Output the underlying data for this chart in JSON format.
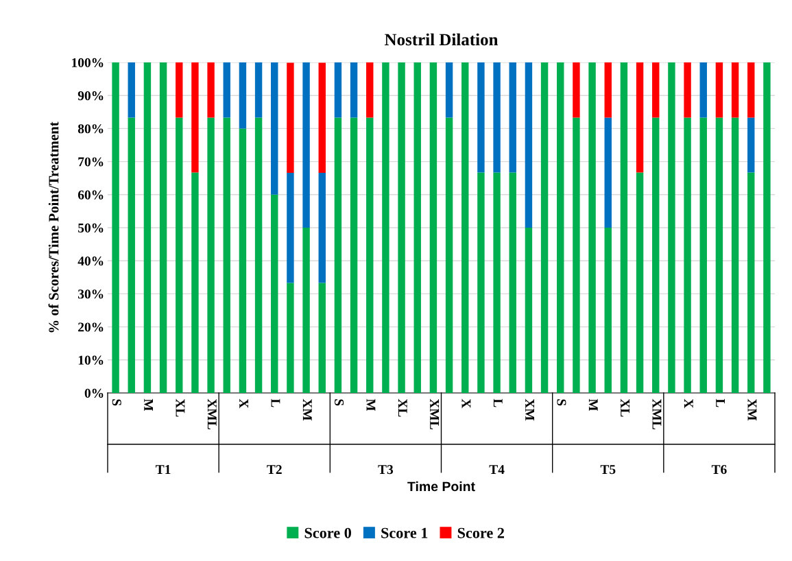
{
  "chart_data": {
    "type": "bar",
    "stacked": true,
    "title": "Nostril Dilation",
    "ylabel": "% of Scores/Time Point/Treatment",
    "xlabel": "Time Point",
    "categories": [
      "S",
      null,
      "M",
      null,
      "XL",
      null,
      "XML",
      null,
      "X",
      null,
      "L",
      null,
      "XM",
      null,
      "S",
      null,
      "M",
      null,
      "XL",
      null,
      "XML",
      null,
      "X",
      null,
      "L",
      null,
      "XM",
      null,
      "S",
      null,
      "M",
      null,
      "XL",
      null,
      "XML",
      null,
      "X",
      null,
      "L",
      null,
      "XM",
      null
    ],
    "annotations": [
      "T1",
      "T2",
      "T3",
      "T4",
      "T5",
      "T6"
    ],
    "series": [
      {
        "name": "Score 0",
        "color": "#00b050",
        "values": [
          100,
          83.3,
          100,
          100,
          83.3,
          66.7,
          83.3,
          83.3,
          80,
          83.3,
          60,
          33.3,
          50,
          33.3,
          83.3,
          83.3,
          83.3,
          100,
          100,
          100,
          100,
          83.3,
          100,
          66.7,
          66.7,
          66.7,
          50,
          100,
          100,
          83.3,
          100,
          50,
          100,
          66.7,
          83.3,
          100,
          83.3,
          83.3,
          83.3,
          83.3,
          66.7,
          100
        ]
      },
      {
        "name": "Score 1",
        "color": "#0070c0",
        "values": [
          0,
          16.7,
          0,
          0,
          0,
          0,
          0,
          16.7,
          20,
          16.7,
          40,
          33.3,
          50,
          33.3,
          16.7,
          16.7,
          0,
          0,
          0,
          0,
          0,
          16.7,
          0,
          33.3,
          33.3,
          33.3,
          50,
          0,
          0,
          0,
          0,
          33.3,
          0,
          0,
          0,
          0,
          0,
          16.7,
          0,
          0,
          16.6,
          0
        ]
      },
      {
        "name": "Score 2",
        "color": "#ff0000",
        "values": [
          0,
          0,
          0,
          0,
          16.7,
          33.3,
          16.7,
          0,
          0,
          0,
          0,
          33.3,
          0,
          33.3,
          0,
          0,
          16.7,
          0,
          0,
          0,
          0,
          0,
          0,
          0,
          0,
          0,
          0,
          0,
          0,
          16.7,
          0,
          16.7,
          0,
          33.3,
          16.7,
          0,
          16.7,
          0,
          16.7,
          16.7,
          16.7,
          0
        ]
      }
    ],
    "ylim": [
      0,
      100
    ],
    "yticks": [
      {
        "value": 0,
        "label": "0%"
      },
      {
        "value": 10,
        "label": "10%"
      },
      {
        "value": 20,
        "label": "20%"
      },
      {
        "value": 30,
        "label": "30%"
      },
      {
        "value": 40,
        "label": "40%"
      },
      {
        "value": 50,
        "label": "50%"
      },
      {
        "value": 60,
        "label": "60%"
      },
      {
        "value": 70,
        "label": "70%"
      },
      {
        "value": 80,
        "label": "80%"
      },
      {
        "value": 90,
        "label": "90%"
      },
      {
        "value": 100,
        "label": "100%"
      }
    ],
    "grid": "y",
    "legend": "bottom"
  }
}
